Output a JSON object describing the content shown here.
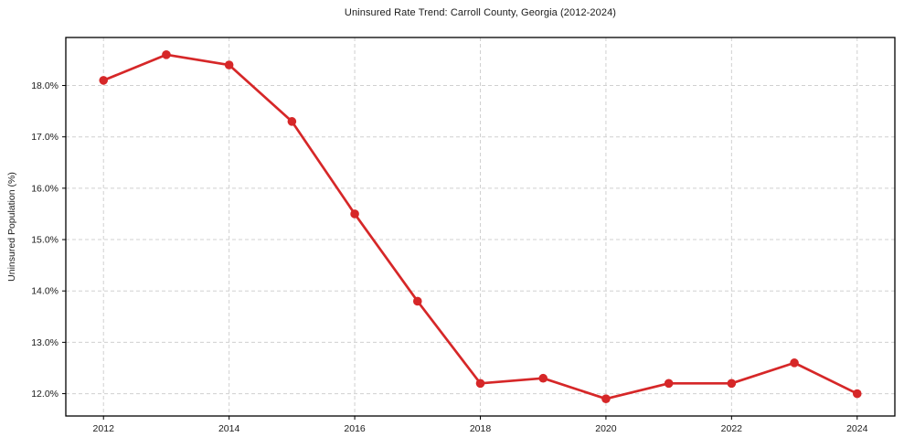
{
  "chart_data": {
    "type": "line",
    "title": "Uninsured Rate Trend: Carroll County, Georgia (2012-2024)",
    "xlabel": "",
    "ylabel": "Uninsured Population (%)",
    "x": [
      2012,
      2013,
      2014,
      2015,
      2016,
      2017,
      2018,
      2019,
      2020,
      2021,
      2022,
      2023,
      2024
    ],
    "values": [
      18.1,
      18.6,
      18.4,
      17.3,
      15.5,
      13.8,
      12.2,
      12.3,
      11.9,
      12.2,
      12.2,
      12.6,
      12.0
    ],
    "unit": "%",
    "xlim": [
      2011.4,
      2024.6
    ],
    "ylim": [
      11.565,
      18.935
    ],
    "x_tick_values": [
      2012,
      2014,
      2016,
      2018,
      2020,
      2022,
      2024
    ],
    "x_tick_labels": [
      "2012",
      "2014",
      "2016",
      "2018",
      "2020",
      "2022",
      "2024"
    ],
    "y_tick_values": [
      12,
      13,
      14,
      15,
      16,
      17,
      18
    ],
    "y_tick_labels": [
      "12.0%",
      "13.0%",
      "14.0%",
      "15.0%",
      "16.0%",
      "17.0%",
      "18.0%"
    ],
    "grid": true,
    "grid_style": "dashed",
    "legend": "none",
    "marker": "circle",
    "colors": {
      "line": "#d62728",
      "marker": "#d62728",
      "grid": "#d0d0d0",
      "axis": "#000000",
      "text": "#1a1a1a",
      "background": "#ffffff"
    }
  }
}
